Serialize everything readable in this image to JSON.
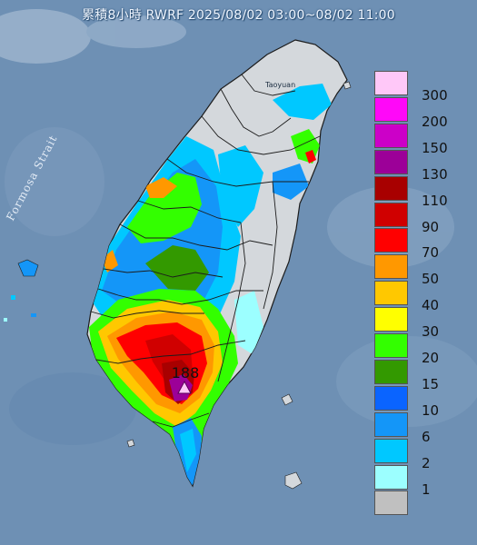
{
  "title": "累積8小時 RWRF 2025/08/02 03:00~08/02 11:00",
  "place_labels": {
    "strait": "Formosa Strait",
    "city": "Taoyuan",
    "max_value": "188"
  },
  "legend": {
    "levels": [
      {
        "label": "300",
        "color": "#ffc8f8"
      },
      {
        "label": "200",
        "color": "#ff08f8"
      },
      {
        "label": "150",
        "color": "#cc00c8"
      },
      {
        "label": "130",
        "color": "#9c0098"
      },
      {
        "label": "110",
        "color": "#a80000"
      },
      {
        "label": "90",
        "color": "#d00000"
      },
      {
        "label": "70",
        "color": "#ff0000"
      },
      {
        "label": "50",
        "color": "#ff9800"
      },
      {
        "label": "40",
        "color": "#ffc800"
      },
      {
        "label": "30",
        "color": "#ffff00"
      },
      {
        "label": "20",
        "color": "#33ff00"
      },
      {
        "label": "15",
        "color": "#339900"
      },
      {
        "label": "10",
        "color": "#0a64ff"
      },
      {
        "label": "6",
        "color": "#1496f8"
      },
      {
        "label": "2",
        "color": "#00c8ff"
      },
      {
        "label": "1",
        "color": "#9cffff"
      },
      {
        "label": "",
        "color": "#c0c0c0"
      }
    ]
  },
  "colors": {
    "sea": "#6d8fb3",
    "land": "#d4d8dc",
    "border": "#1c1c1c"
  }
}
